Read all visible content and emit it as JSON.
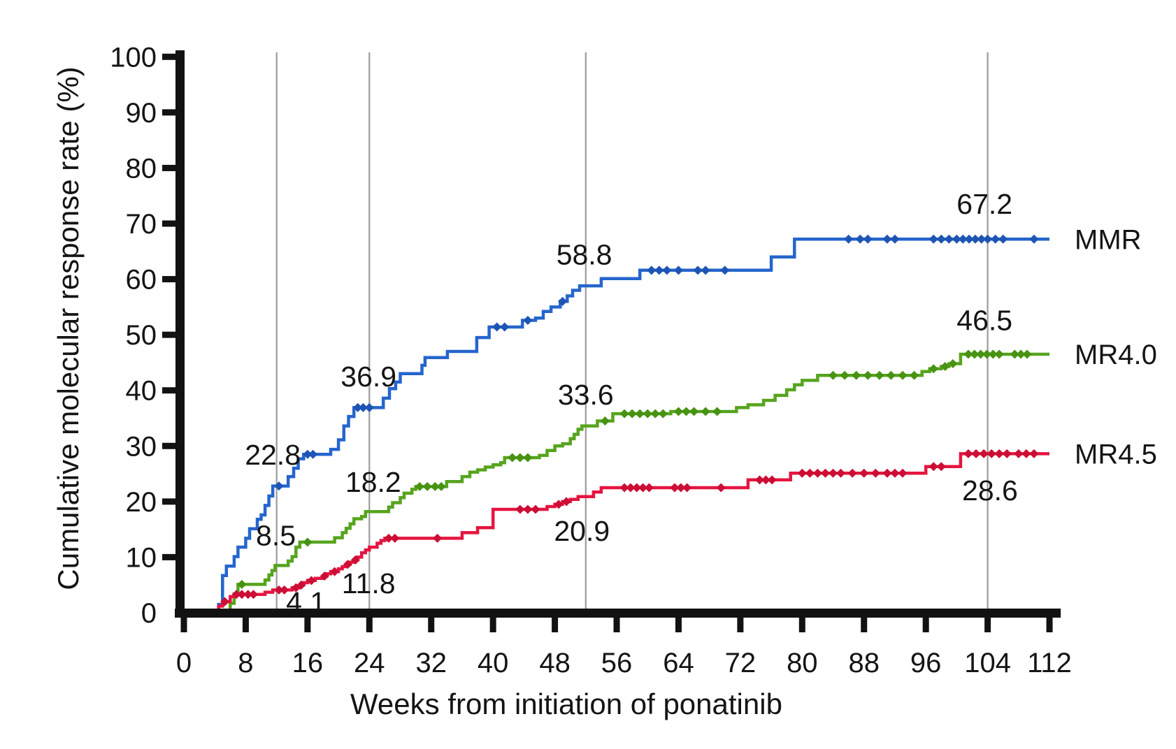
{
  "chart_data": {
    "type": "line",
    "subtype": "cumulative-incidence-step-curve",
    "title": "",
    "xlabel": "Weeks from initiation of ponatinib",
    "ylabel": "Cumulative molecular response rate (%)",
    "xlim": [
      0,
      113
    ],
    "ylim": [
      0,
      100
    ],
    "x_ticks": [
      0,
      8,
      16,
      24,
      32,
      40,
      48,
      56,
      64,
      72,
      80,
      88,
      96,
      104,
      112
    ],
    "y_ticks": [
      0,
      10,
      20,
      30,
      40,
      50,
      60,
      70,
      80,
      90,
      100
    ],
    "grid": "vertical reference lines only",
    "gridlines_x_weeks": [
      12,
      24,
      52,
      104
    ],
    "legend_position": "right of plot, aligned to curve ends",
    "axis_color": "#121212",
    "gridline_color": "#9b9b9b",
    "series": [
      {
        "name": "MMR",
        "color": "#2565cd",
        "marker_color": "#1e55b4",
        "step_points": [
          [
            4.5,
            1.5
          ],
          [
            5,
            6.7
          ],
          [
            5.5,
            8.4
          ],
          [
            6.5,
            10.1
          ],
          [
            7,
            11.8
          ],
          [
            8,
            13.4
          ],
          [
            8.5,
            15.1
          ],
          [
            9.5,
            16.8
          ],
          [
            10,
            17.6
          ],
          [
            10.5,
            19.3
          ],
          [
            11,
            21.0
          ],
          [
            11.5,
            22.8
          ],
          [
            13.5,
            24.5
          ],
          [
            14.2,
            26.0
          ],
          [
            14.8,
            27.7
          ],
          [
            15.5,
            28.5
          ],
          [
            19,
            29.4
          ],
          [
            20,
            31.1
          ],
          [
            20.7,
            33.6
          ],
          [
            21.3,
            35.3
          ],
          [
            22,
            36.9
          ],
          [
            25.8,
            38.6
          ],
          [
            26.6,
            40.3
          ],
          [
            27.4,
            41.5
          ],
          [
            28,
            43.0
          ],
          [
            30.8,
            44.5
          ],
          [
            31.2,
            45.9
          ],
          [
            34.1,
            47.0
          ],
          [
            37.9,
            49.5
          ],
          [
            39.5,
            51.4
          ],
          [
            43.8,
            52.6
          ],
          [
            45.5,
            53.0
          ],
          [
            46.5,
            54.2
          ],
          [
            47.5,
            55.0
          ],
          [
            48.7,
            56.0
          ],
          [
            49.6,
            57.0
          ],
          [
            50.3,
            58.0
          ],
          [
            51.2,
            58.8
          ],
          [
            54,
            60.1
          ],
          [
            59,
            61.6
          ],
          [
            76,
            64.0
          ],
          [
            79,
            67.2
          ],
          [
            112,
            67.2
          ]
        ],
        "markers": [
          [
            12.3,
            22.8
          ],
          [
            16,
            28.5
          ],
          [
            16.7,
            28.5
          ],
          [
            22.5,
            36.9
          ],
          [
            23.2,
            36.9
          ],
          [
            24,
            36.9
          ],
          [
            40.5,
            51.4
          ],
          [
            41.5,
            51.4
          ],
          [
            44.5,
            52.6
          ],
          [
            49,
            56.0
          ],
          [
            60.5,
            61.6
          ],
          [
            61.5,
            61.6
          ],
          [
            62.5,
            61.6
          ],
          [
            64,
            61.6
          ],
          [
            66.5,
            61.6
          ],
          [
            67.5,
            61.6
          ],
          [
            70,
            61.6
          ],
          [
            86,
            67.2
          ],
          [
            87.5,
            67.2
          ],
          [
            88.5,
            67.2
          ],
          [
            91,
            67.2
          ],
          [
            92,
            67.2
          ],
          [
            97,
            67.2
          ],
          [
            98,
            67.2
          ],
          [
            99,
            67.2
          ],
          [
            100,
            67.2
          ],
          [
            100.8,
            67.2
          ],
          [
            101.6,
            67.2
          ],
          [
            102.4,
            67.2
          ],
          [
            103.2,
            67.2
          ],
          [
            104,
            67.2
          ],
          [
            105,
            67.2
          ],
          [
            106,
            67.2
          ],
          [
            110,
            67.2
          ]
        ],
        "milestones": [
          {
            "week": 12,
            "value": 22.8,
            "label": "22.8",
            "label_pos": {
              "week": 11.5,
              "value": 28.4
            }
          },
          {
            "week": 24,
            "value": 36.9,
            "label": "36.9",
            "label_pos": {
              "week": 23.9,
              "value": 42.5
            }
          },
          {
            "week": 52,
            "value": 58.8,
            "label": "58.8",
            "label_pos": {
              "week": 51.8,
              "value": 64.4
            }
          },
          {
            "week": 104,
            "value": 67.2,
            "label": "67.2",
            "label_pos": {
              "week": 103.6,
              "value": 73.5
            }
          }
        ]
      },
      {
        "name": "MR4.0",
        "color": "#56a41e",
        "marker_color": "#479312",
        "step_points": [
          [
            6,
            1.7
          ],
          [
            6.5,
            3.4
          ],
          [
            7,
            5.1
          ],
          [
            10.5,
            5.9
          ],
          [
            11,
            6.8
          ],
          [
            11.4,
            7.6
          ],
          [
            11.8,
            8.5
          ],
          [
            13.5,
            9.3
          ],
          [
            14,
            10.1
          ],
          [
            14.5,
            11.8
          ],
          [
            15,
            12.7
          ],
          [
            19.5,
            13.5
          ],
          [
            20.5,
            14.4
          ],
          [
            21,
            15.2
          ],
          [
            21.5,
            16.0
          ],
          [
            22,
            16.9
          ],
          [
            23,
            17.3
          ],
          [
            23.5,
            18.2
          ],
          [
            26.5,
            19.0
          ],
          [
            27,
            19.8
          ],
          [
            28,
            20.7
          ],
          [
            28.5,
            21.5
          ],
          [
            29.5,
            22.2
          ],
          [
            30,
            22.7
          ],
          [
            34,
            23.6
          ],
          [
            36,
            24.5
          ],
          [
            37,
            25.3
          ],
          [
            38,
            25.7
          ],
          [
            39,
            26.2
          ],
          [
            40,
            26.6
          ],
          [
            41,
            27.0
          ],
          [
            41.5,
            27.9
          ],
          [
            46,
            28.3
          ],
          [
            47,
            29.2
          ],
          [
            48,
            30.0
          ],
          [
            49,
            30.4
          ],
          [
            50,
            31.3
          ],
          [
            50.5,
            32.1
          ],
          [
            51,
            33.0
          ],
          [
            51.5,
            33.6
          ],
          [
            53.5,
            34.5
          ],
          [
            55.5,
            35.8
          ],
          [
            63,
            36.2
          ],
          [
            71.5,
            36.9
          ],
          [
            73,
            37.4
          ],
          [
            75,
            38.2
          ],
          [
            76.5,
            39.1
          ],
          [
            78,
            40.1
          ],
          [
            79,
            41.0
          ],
          [
            80,
            41.8
          ],
          [
            82,
            42.7
          ],
          [
            95.5,
            43.4
          ],
          [
            96.5,
            43.9
          ],
          [
            98,
            44.3
          ],
          [
            99,
            44.8
          ],
          [
            100.5,
            46.5
          ],
          [
            112,
            46.5
          ]
        ],
        "markers": [
          [
            7.5,
            5.1
          ],
          [
            16,
            12.7
          ],
          [
            30.5,
            22.7
          ],
          [
            31.5,
            22.7
          ],
          [
            32.5,
            22.7
          ],
          [
            33.3,
            22.7
          ],
          [
            42.5,
            27.9
          ],
          [
            43.5,
            27.9
          ],
          [
            44.5,
            27.9
          ],
          [
            54.5,
            34.5
          ],
          [
            57,
            35.8
          ],
          [
            58,
            35.8
          ],
          [
            59,
            35.8
          ],
          [
            60,
            35.8
          ],
          [
            61,
            35.8
          ],
          [
            62,
            35.8
          ],
          [
            64,
            36.2
          ],
          [
            65,
            36.2
          ],
          [
            66,
            36.2
          ],
          [
            67.5,
            36.2
          ],
          [
            69,
            36.2
          ],
          [
            84,
            42.7
          ],
          [
            85.5,
            42.7
          ],
          [
            87,
            42.7
          ],
          [
            88.5,
            42.7
          ],
          [
            90,
            42.7
          ],
          [
            91.5,
            42.7
          ],
          [
            93,
            42.7
          ],
          [
            94.5,
            42.7
          ],
          [
            97,
            43.9
          ],
          [
            98.5,
            44.3
          ],
          [
            99.5,
            44.8
          ],
          [
            101.5,
            46.5
          ],
          [
            102.3,
            46.5
          ],
          [
            103.1,
            46.5
          ],
          [
            103.9,
            46.5
          ],
          [
            104.7,
            46.5
          ],
          [
            105.5,
            46.5
          ],
          [
            107.5,
            46.5
          ],
          [
            108.3,
            46.5
          ],
          [
            109.1,
            46.5
          ]
        ],
        "milestones": [
          {
            "week": 12,
            "value": 8.5,
            "label": "8.5",
            "label_pos": {
              "week": 11.9,
              "value": 13.9
            }
          },
          {
            "week": 24,
            "value": 18.2,
            "label": "18.2",
            "label_pos": {
              "week": 24.5,
              "value": 23.5
            }
          },
          {
            "week": 52,
            "value": 33.6,
            "label": "33.6",
            "label_pos": {
              "week": 52.0,
              "value": 39.2
            }
          },
          {
            "week": 104,
            "value": 46.5,
            "label": "46.5",
            "label_pos": {
              "week": 103.6,
              "value": 52.6
            }
          }
        ]
      },
      {
        "name": "MR4.5",
        "color": "#e51540",
        "marker_color": "#cc0e35",
        "step_points": [
          [
            4.5,
            1.2
          ],
          [
            5,
            2.0
          ],
          [
            6,
            2.9
          ],
          [
            6.5,
            3.3
          ],
          [
            10.5,
            3.7
          ],
          [
            11.5,
            4.1
          ],
          [
            14,
            4.5
          ],
          [
            15,
            5.0
          ],
          [
            15.5,
            5.4
          ],
          [
            16,
            5.8
          ],
          [
            17,
            6.2
          ],
          [
            18,
            6.6
          ],
          [
            18.5,
            7.0
          ],
          [
            19,
            7.4
          ],
          [
            20,
            7.9
          ],
          [
            20.5,
            8.3
          ],
          [
            21,
            8.7
          ],
          [
            21.5,
            9.1
          ],
          [
            22,
            9.5
          ],
          [
            22.5,
            10.0
          ],
          [
            23,
            10.8
          ],
          [
            23.5,
            11.3
          ],
          [
            24,
            11.8
          ],
          [
            25,
            12.5
          ],
          [
            25.5,
            13.0
          ],
          [
            26,
            13.4
          ],
          [
            36,
            14.4
          ],
          [
            38,
            15.3
          ],
          [
            40,
            18.6
          ],
          [
            47,
            19.1
          ],
          [
            48,
            19.5
          ],
          [
            49,
            20.0
          ],
          [
            50,
            20.4
          ],
          [
            51,
            20.9
          ],
          [
            53,
            21.7
          ],
          [
            54,
            22.5
          ],
          [
            73,
            23.9
          ],
          [
            78.5,
            25.1
          ],
          [
            96,
            26.3
          ],
          [
            100.5,
            28.6
          ],
          [
            112,
            28.6
          ]
        ],
        "markers": [
          [
            5.3,
            2.0
          ],
          [
            6.8,
            3.3
          ],
          [
            7.5,
            3.3
          ],
          [
            8.3,
            3.3
          ],
          [
            9,
            3.3
          ],
          [
            12.3,
            4.1
          ],
          [
            13,
            4.1
          ],
          [
            14.5,
            4.5
          ],
          [
            15.2,
            5.0
          ],
          [
            16.5,
            5.8
          ],
          [
            18.2,
            6.6
          ],
          [
            19.5,
            7.4
          ],
          [
            21.2,
            8.7
          ],
          [
            22.2,
            9.5
          ],
          [
            26.5,
            13.4
          ],
          [
            27.3,
            13.4
          ],
          [
            32.8,
            13.4
          ],
          [
            43.5,
            18.6
          ],
          [
            44.5,
            18.6
          ],
          [
            45.5,
            18.6
          ],
          [
            48.5,
            19.5
          ],
          [
            49.5,
            20.0
          ],
          [
            57,
            22.5
          ],
          [
            57.8,
            22.5
          ],
          [
            58.6,
            22.5
          ],
          [
            59.4,
            22.5
          ],
          [
            60.2,
            22.5
          ],
          [
            63.5,
            22.5
          ],
          [
            64.3,
            22.5
          ],
          [
            65.1,
            22.5
          ],
          [
            69.5,
            22.5
          ],
          [
            74.5,
            23.9
          ],
          [
            75.3,
            23.9
          ],
          [
            76.1,
            23.9
          ],
          [
            80,
            25.1
          ],
          [
            81,
            25.1
          ],
          [
            82,
            25.1
          ],
          [
            83,
            25.1
          ],
          [
            84,
            25.1
          ],
          [
            85,
            25.1
          ],
          [
            86.5,
            25.1
          ],
          [
            88,
            25.1
          ],
          [
            89.5,
            25.1
          ],
          [
            91,
            25.1
          ],
          [
            92,
            25.1
          ],
          [
            93,
            25.1
          ],
          [
            97,
            26.3
          ],
          [
            98,
            26.3
          ],
          [
            101.5,
            28.6
          ],
          [
            102.5,
            28.6
          ],
          [
            103.5,
            28.6
          ],
          [
            104.5,
            28.6
          ],
          [
            105.5,
            28.6
          ],
          [
            106.5,
            28.6
          ],
          [
            108,
            28.6
          ],
          [
            109,
            28.6
          ],
          [
            110,
            28.6
          ]
        ],
        "milestones": [
          {
            "week": 12,
            "value": 4.1,
            "label": "4.1",
            "label_pos": {
              "week": 15.8,
              "value": 1.9
            }
          },
          {
            "week": 24,
            "value": 11.8,
            "label": "11.8",
            "label_pos": {
              "week": 23.9,
              "value": 5.3
            }
          },
          {
            "week": 52,
            "value": 20.9,
            "label": "20.9",
            "label_pos": {
              "week": 51.5,
              "value": 14.7
            }
          },
          {
            "week": 104,
            "value": 28.6,
            "label": "28.6",
            "label_pos": {
              "week": 104.3,
              "value": 22.0
            }
          }
        ]
      }
    ]
  }
}
